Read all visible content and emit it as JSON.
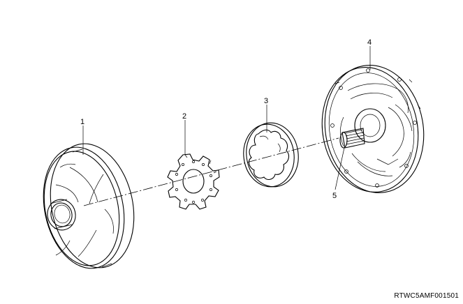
{
  "diagram": {
    "callouts": [
      {
        "id": "1",
        "label": "1"
      },
      {
        "id": "2",
        "label": "2"
      },
      {
        "id": "3",
        "label": "3"
      },
      {
        "id": "4",
        "label": "4"
      },
      {
        "id": "5",
        "label": "5"
      }
    ],
    "reference_code": "RTWC5AMF001501"
  }
}
